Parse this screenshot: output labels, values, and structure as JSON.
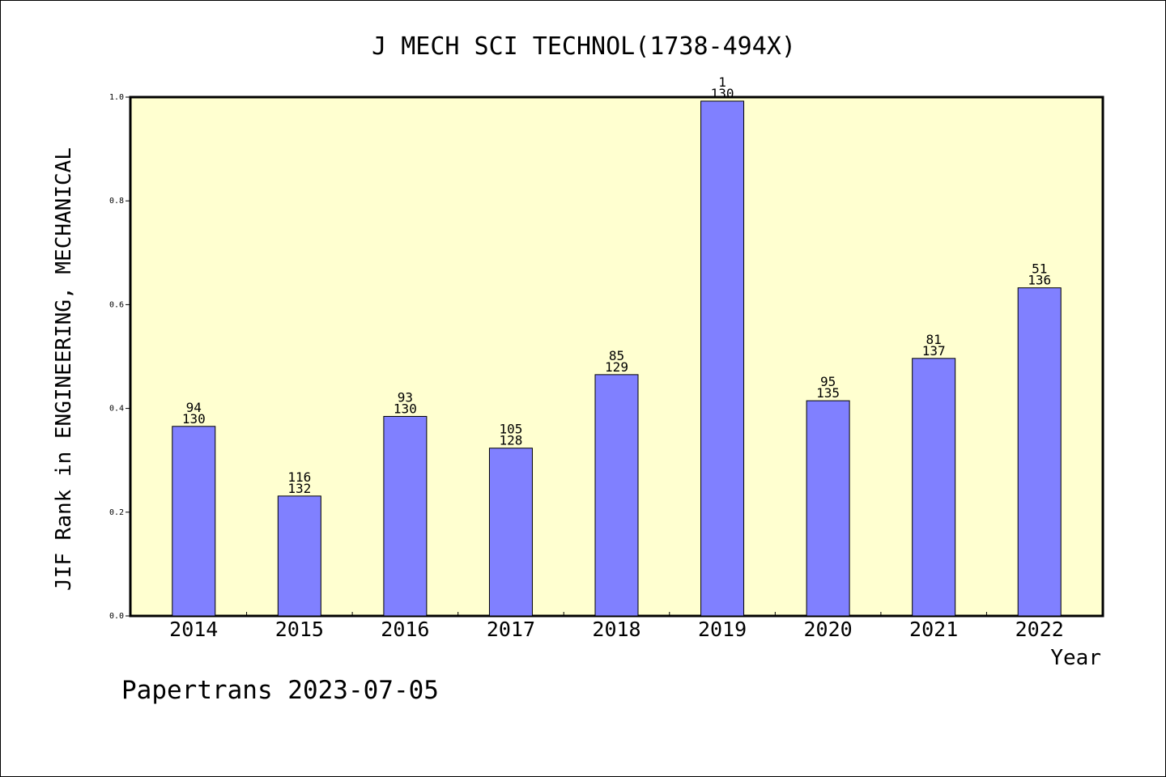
{
  "chart_data": {
    "type": "bar",
    "title": "J MECH SCI TECHNOL(1738-494X)",
    "xlabel": "Year",
    "ylabel": "JIF Rank in ENGINEERING, MECHANICAL",
    "ylim": [
      0,
      1.0
    ],
    "yticks": [
      "0.0",
      "0.2",
      "0.4",
      "0.6",
      "0.8",
      "1.0"
    ],
    "categories": [
      "2014",
      "2015",
      "2016",
      "2017",
      "2018",
      "2019",
      "2020",
      "2021",
      "2022"
    ],
    "values": [
      0.3654,
      0.2311,
      0.3846,
      0.3234,
      0.4651,
      0.9923,
      0.4148,
      0.4964,
      0.6324
    ],
    "rank": [
      "94",
      "116",
      "93",
      "105",
      "85",
      "1",
      "95",
      "81",
      "51"
    ],
    "total": [
      "130",
      "132",
      "130",
      "128",
      "129",
      "130",
      "135",
      "137",
      "136"
    ],
    "grid": false,
    "legend": "none"
  },
  "colors": {
    "bar": "#8080ff",
    "plot_background": "#ffffd0",
    "frame": "#000000"
  },
  "footer": "Papertrans 2023-07-05"
}
